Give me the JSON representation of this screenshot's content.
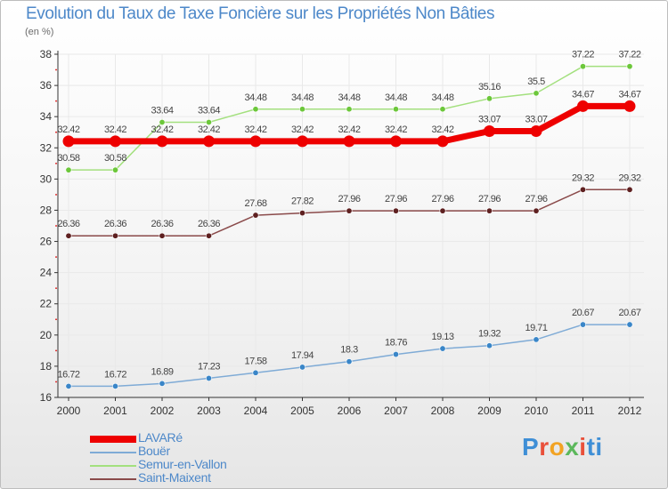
{
  "colors": {
    "title": "#4d88c9",
    "grid": "#e9e9e9",
    "axis": "#333333",
    "tick_mark": "#e23a3a"
  },
  "chart_data": {
    "type": "line",
    "title": "Evolution du Taux de Taxe Foncière sur les Propriétés Non Bâties",
    "ylabel": "(en %)",
    "xlabel": "",
    "x": [
      "2000",
      "2001",
      "2002",
      "2003",
      "2004",
      "2005",
      "2006",
      "2007",
      "2008",
      "2009",
      "2010",
      "2011",
      "2012"
    ],
    "ylim": [
      16,
      38
    ],
    "yticks": [
      16,
      18,
      20,
      22,
      24,
      26,
      28,
      30,
      32,
      34,
      36,
      38
    ],
    "grid": true,
    "legend_position": "bottom-left",
    "series": [
      {
        "name": "LAVARé",
        "color": "#ee0000",
        "marker": "#ee0000",
        "width": 7,
        "labels": [
          "32.42",
          "32.42",
          "32.42",
          "32.42",
          "32.42",
          "32.42",
          "32.42",
          "32.42",
          "32.42",
          "33.07",
          "33.07",
          "34.67",
          "34.67"
        ],
        "values": [
          32.42,
          32.42,
          32.42,
          32.42,
          32.42,
          32.42,
          32.42,
          32.42,
          32.42,
          33.07,
          33.07,
          34.67,
          34.67
        ]
      },
      {
        "name": "Bouër",
        "color": "#7fabd6",
        "marker": "#3a86c8",
        "width": 1.5,
        "labels": [
          "16.72",
          "16.72",
          "16.89",
          "17.23",
          "17.58",
          "17.94",
          "18.3",
          "18.76",
          "19.13",
          "19.32",
          "19.71",
          "20.67",
          "20.67"
        ],
        "values": [
          16.72,
          16.72,
          16.89,
          17.23,
          17.58,
          17.94,
          18.3,
          18.76,
          19.13,
          19.32,
          19.71,
          20.67,
          20.67
        ]
      },
      {
        "name": "Semur-en-Vallon",
        "color": "#a3e07e",
        "marker": "#6cc73a",
        "width": 1.5,
        "labels": [
          "30.58",
          "30.58",
          "33.64",
          "33.64",
          "34.48",
          "34.48",
          "34.48",
          "34.48",
          "34.48",
          "35.16",
          "35.5",
          "37.22",
          "37.22"
        ],
        "values": [
          30.58,
          30.58,
          33.64,
          33.64,
          34.48,
          34.48,
          34.48,
          34.48,
          34.48,
          35.16,
          35.5,
          37.22,
          37.22
        ]
      },
      {
        "name": "Saint-Maixent",
        "color": "#8a4a4a",
        "marker": "#5e2020",
        "width": 1.5,
        "labels": [
          "26.36",
          "26.36",
          "26.36",
          "26.36",
          "27.68",
          "27.82",
          "27.96",
          "27.96",
          "27.96",
          "27.96",
          "27.96",
          "29.32",
          "29.32"
        ],
        "values": [
          26.36,
          26.36,
          26.36,
          26.36,
          27.68,
          27.82,
          27.96,
          27.96,
          27.96,
          27.96,
          27.96,
          29.32,
          29.32
        ]
      }
    ]
  },
  "legend": {
    "items": [
      {
        "label": "LAVARé",
        "color": "#ee0000",
        "thickness": 8
      },
      {
        "label": "Bouër",
        "color": "#7fabd6",
        "thickness": 2
      },
      {
        "label": "Semur-en-Vallon",
        "color": "#a3e07e",
        "thickness": 2
      },
      {
        "label": "Saint-Maixent",
        "color": "#8a4a4a",
        "thickness": 2
      }
    ]
  },
  "logo": {
    "letters": [
      "P",
      "r",
      "o",
      "x",
      "i",
      "t",
      "i"
    ]
  }
}
